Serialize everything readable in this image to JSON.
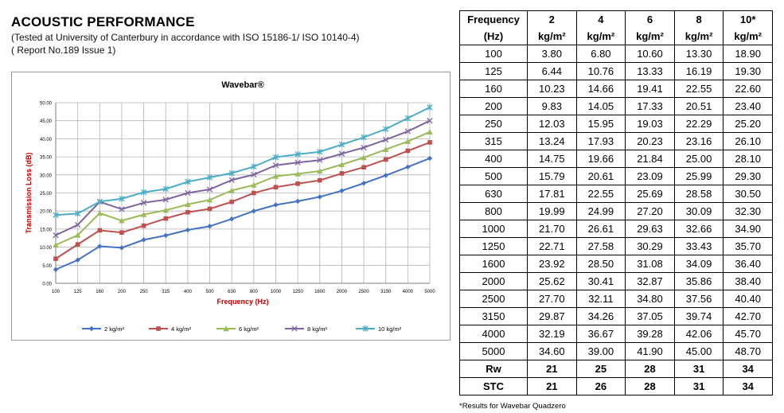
{
  "header": {
    "title": "ACOUSTIC PERFORMANCE",
    "subtitle1": "(Tested at University of Canterbury in accordance with  ISO 15186-1/ ISO 10140-4)",
    "subtitle2": "( Report No.189 Issue 1)"
  },
  "chart_data": {
    "type": "line",
    "title": "Wavebar®",
    "xlabel": "Frequency (Hz)",
    "ylabel": "Transmission Loss (dB)",
    "categories": [
      "100",
      "125",
      "160",
      "200",
      "250",
      "315",
      "400",
      "500",
      "630",
      "800",
      "1000",
      "1250",
      "1600",
      "2000",
      "2500",
      "3150",
      "4000",
      "5000"
    ],
    "ylim": [
      0,
      50
    ],
    "yticks": [
      "0.00",
      "5.00",
      "10.00",
      "15.00",
      "20.00",
      "25.00",
      "30.00",
      "35.00",
      "40.00",
      "45.00",
      "50.00"
    ],
    "grid": true,
    "legend": "bottom",
    "series": [
      {
        "name": "2 kg/m²",
        "color": "#4472c4",
        "marker": "diamond",
        "values": [
          3.8,
          6.44,
          10.23,
          9.83,
          12.03,
          13.24,
          14.75,
          15.79,
          17.81,
          19.99,
          21.7,
          22.71,
          23.92,
          25.62,
          27.7,
          29.87,
          32.19,
          34.6
        ]
      },
      {
        "name": "4 kg/m²",
        "color": "#c0504d",
        "marker": "square",
        "values": [
          6.8,
          10.76,
          14.66,
          14.05,
          15.95,
          17.93,
          19.66,
          20.61,
          22.55,
          24.99,
          26.61,
          27.58,
          28.5,
          30.41,
          32.11,
          34.26,
          36.67,
          39.0
        ]
      },
      {
        "name": "6 kg/m²",
        "color": "#9bbb59",
        "marker": "triangle",
        "values": [
          10.6,
          13.33,
          19.41,
          17.33,
          19.03,
          20.23,
          21.84,
          23.09,
          25.69,
          27.2,
          29.63,
          30.29,
          31.08,
          32.87,
          34.8,
          37.05,
          39.28,
          41.9
        ]
      },
      {
        "name": "8 kg/m²",
        "color": "#8064a2",
        "marker": "x",
        "values": [
          13.3,
          16.19,
          22.55,
          20.51,
          22.29,
          23.16,
          25.0,
          25.99,
          28.58,
          30.09,
          32.66,
          33.43,
          34.09,
          35.86,
          37.56,
          39.74,
          42.06,
          45.0
        ]
      },
      {
        "name": "10 kg/m²",
        "color": "#4bacc6",
        "marker": "star",
        "values": [
          18.9,
          19.3,
          22.6,
          23.4,
          25.2,
          26.1,
          28.1,
          29.3,
          30.5,
          32.3,
          34.9,
          35.7,
          36.4,
          38.4,
          40.4,
          42.7,
          45.7,
          48.7
        ]
      }
    ]
  },
  "table": {
    "header_row1": [
      "Frequency",
      "2",
      "4",
      "6",
      "8",
      "10*"
    ],
    "header_row2": [
      "(Hz)",
      "kg/m²",
      "kg/m²",
      "kg/m²",
      "kg/m²",
      "kg/m²"
    ],
    "rows": [
      [
        "100",
        "3.80",
        "6.80",
        "10.60",
        "13.30",
        "18.90"
      ],
      [
        "125",
        "6.44",
        "10.76",
        "13.33",
        "16.19",
        "19.30"
      ],
      [
        "160",
        "10.23",
        "14.66",
        "19.41",
        "22.55",
        "22.60"
      ],
      [
        "200",
        "9.83",
        "14.05",
        "17.33",
        "20.51",
        "23.40"
      ],
      [
        "250",
        "12.03",
        "15.95",
        "19.03",
        "22.29",
        "25.20"
      ],
      [
        "315",
        "13.24",
        "17.93",
        "20.23",
        "23.16",
        "26.10"
      ],
      [
        "400",
        "14.75",
        "19.66",
        "21.84",
        "25.00",
        "28.10"
      ],
      [
        "500",
        "15.79",
        "20.61",
        "23.09",
        "25.99",
        "29.30"
      ],
      [
        "630",
        "17.81",
        "22.55",
        "25.69",
        "28.58",
        "30.50"
      ],
      [
        "800",
        "19.99",
        "24.99",
        "27.20",
        "30.09",
        "32.30"
      ],
      [
        "1000",
        "21.70",
        "26.61",
        "29.63",
        "32.66",
        "34.90"
      ],
      [
        "1250",
        "22.71",
        "27.58",
        "30.29",
        "33.43",
        "35.70"
      ],
      [
        "1600",
        "23.92",
        "28.50",
        "31.08",
        "34.09",
        "36.40"
      ],
      [
        "2000",
        "25.62",
        "30.41",
        "32.87",
        "35.86",
        "38.40"
      ],
      [
        "2500",
        "27.70",
        "32.11",
        "34.80",
        "37.56",
        "40.40"
      ],
      [
        "3150",
        "29.87",
        "34.26",
        "37.05",
        "39.74",
        "42.70"
      ],
      [
        "4000",
        "32.19",
        "36.67",
        "39.28",
        "42.06",
        "45.70"
      ],
      [
        "5000",
        "34.60",
        "39.00",
        "41.90",
        "45.00",
        "48.70"
      ]
    ],
    "footer_rows": [
      [
        "Rw",
        "21",
        "25",
        "28",
        "31",
        "34"
      ],
      [
        "STC",
        "21",
        "26",
        "28",
        "31",
        "34"
      ]
    ],
    "footnote": "*Results for Wavebar Quadzero"
  }
}
